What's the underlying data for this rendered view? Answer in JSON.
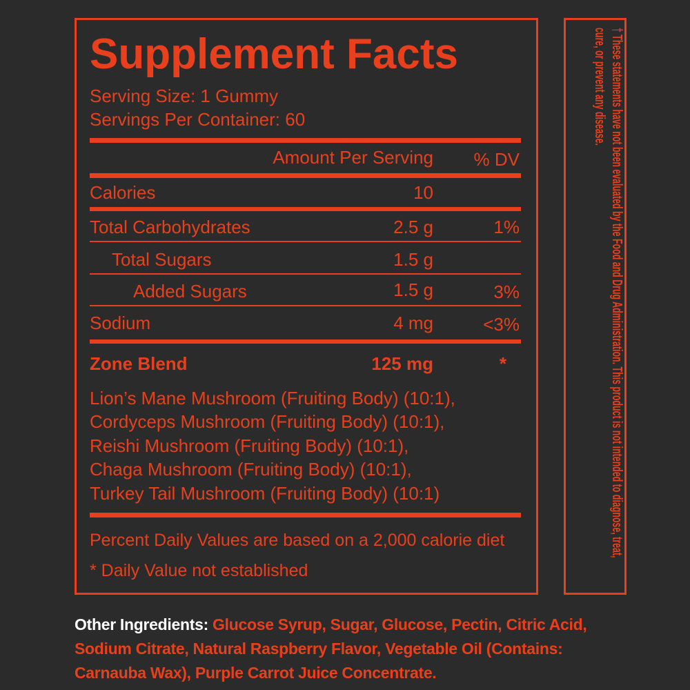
{
  "title": "Supplement Facts",
  "serving_size": "Serving Size: 1 Gummy",
  "servings_per_container": "Servings Per Container: 60",
  "header": {
    "amount": "Amount Per Serving",
    "dv": "% DV"
  },
  "rows": [
    {
      "name": "Calories",
      "amount": "10"
    },
    {
      "name": "Total Carbohydrates",
      "amount": "2.5 g",
      "dv": "1%"
    },
    {
      "name": "Total Sugars",
      "amount": "1.5 g"
    },
    {
      "name": "Added Sugars",
      "amount": "1.5 g",
      "dv": "3%"
    },
    {
      "name": "Sodium",
      "amount": "4 mg",
      "dv": "<3%"
    }
  ],
  "blend": {
    "name": "Zone Blend",
    "amount": "125 mg",
    "dv": "*"
  },
  "blend_ingredients": [
    "Lion’s Mane Mushroom (Fruiting Body) (10:1),",
    "Cordyceps Mushroom (Fruiting Body) (10:1),",
    "Reishi Mushroom (Fruiting Body) (10:1),",
    "Chaga Mushroom (Fruiting Body) (10:1),",
    "Turkey Tail Mushroom (Fruiting Body) (10:1)"
  ],
  "footnotes": [
    "Percent Daily Values are based on a 2,000 calorie diet",
    "* Daily Value not established"
  ],
  "disclaimer": "† These statements have not been evaluated by the Food and Drug Administration. This product is not intended to diagnose, treat, cure, or prevent any disease.",
  "other_ingredients": {
    "label": "Other Ingredients:",
    "text": "Glucose Syrup, Sugar, Glucose, Pectin, Citric Acid, Sodium Citrate, Natural Raspberry Flavor, Vegetable Oil (Contains: Carnauba Wax), Purple Carrot Juice Concentrate."
  }
}
